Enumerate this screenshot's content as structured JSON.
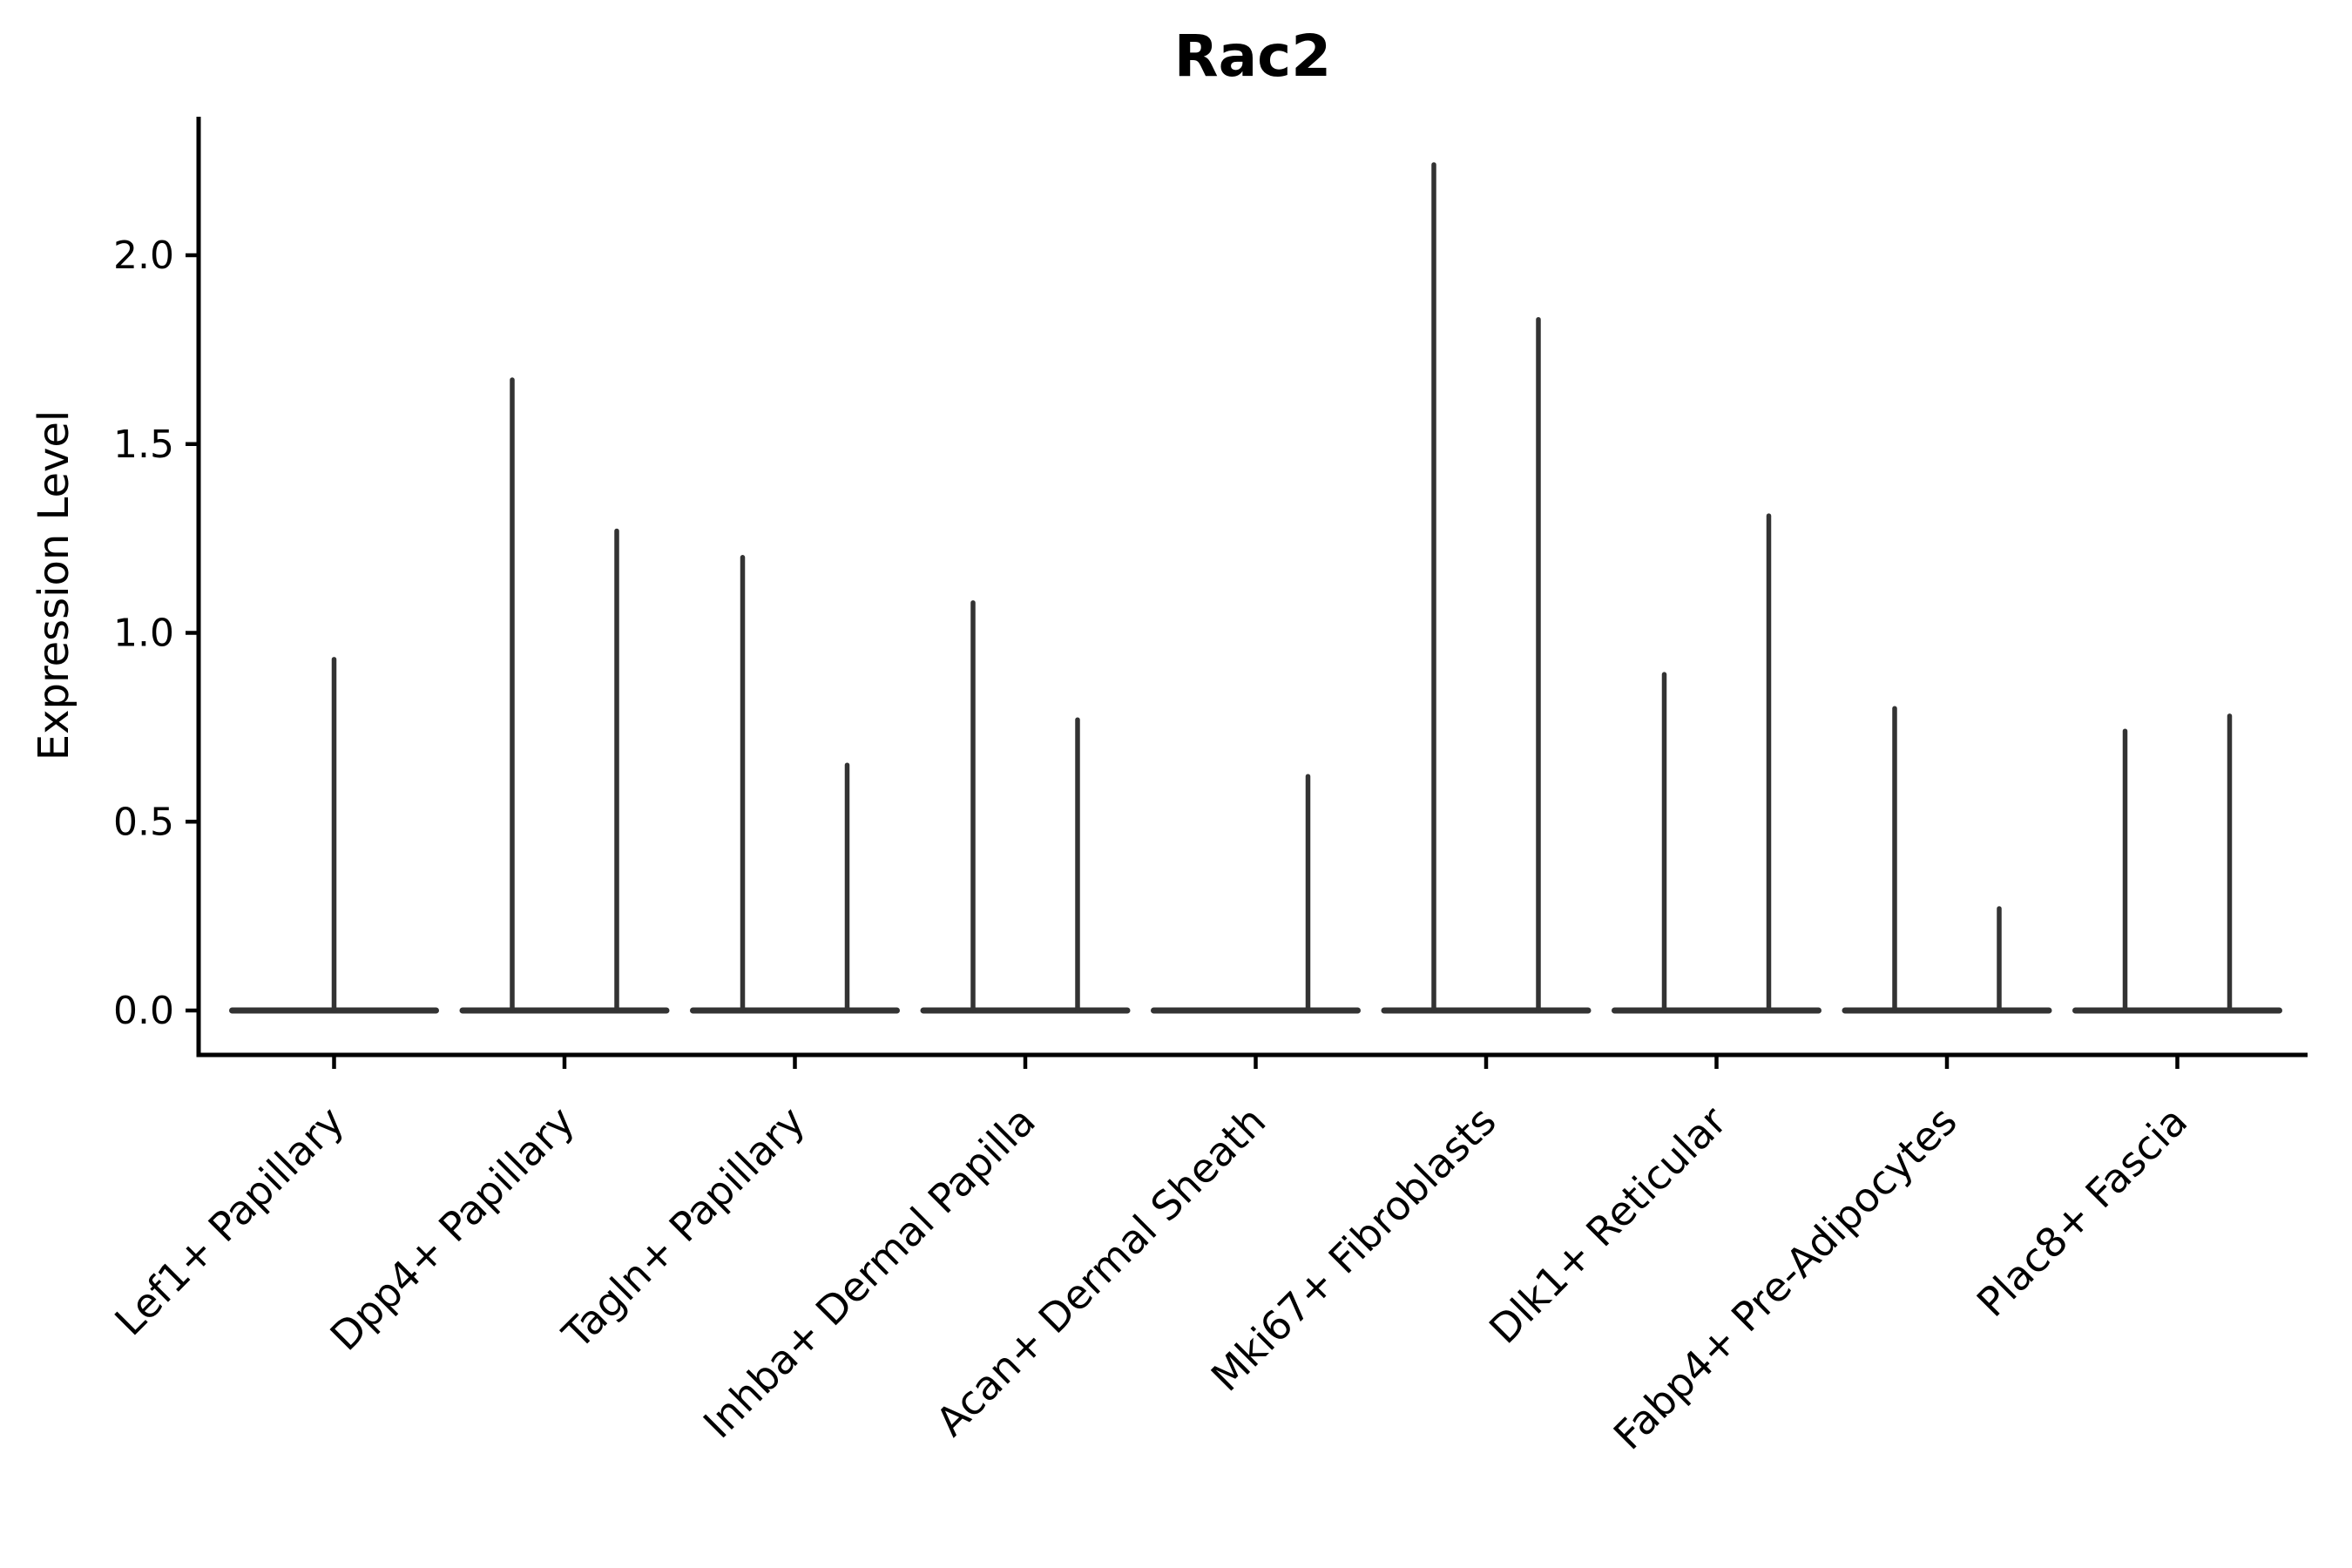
{
  "chart_data": {
    "type": "violin",
    "title": "Rac2",
    "ylabel": "Expression Level",
    "xlabel": "",
    "grid": false,
    "legend": "none",
    "ylim": [
      -0.12,
      2.37
    ],
    "yticks": [
      0.0,
      0.5,
      1.0,
      1.5,
      2.0
    ],
    "ytick_labels": [
      "0.0",
      "0.5",
      "1.0",
      "1.5",
      "2.0"
    ],
    "description": "Violin plot of Rac2 expression per cluster; each violin collapses to a flat baseline at 0 with a thin spike up to the maximum expression. Categories with two values contain two side-by-side violins; a 0 value means a flat violin with no spike.",
    "groups": [
      {
        "category": "Lef1+ Papillary",
        "violin_maxima": [
          0.93
        ]
      },
      {
        "category": "Dpp4+ Papillary",
        "violin_maxima": [
          1.67,
          1.27
        ]
      },
      {
        "category": "Tagln+ Papillary",
        "violin_maxima": [
          1.2,
          0.65
        ]
      },
      {
        "category": "Inhba+ Dermal Papilla",
        "violin_maxima": [
          1.08,
          0.77
        ]
      },
      {
        "category": "Acan+ Dermal Sheath",
        "violin_maxima": [
          0.0,
          0.62
        ]
      },
      {
        "category": "Mki67+ Fibroblasts",
        "violin_maxima": [
          2.24,
          1.83
        ]
      },
      {
        "category": "Dlk1+ Reticular",
        "violin_maxima": [
          0.89,
          1.31
        ]
      },
      {
        "category": "Fabp4+ Pre-Adipocytes",
        "violin_maxima": [
          0.8,
          0.27
        ]
      },
      {
        "category": "Plac8+ Fascia",
        "violin_maxima": [
          0.74,
          0.78
        ]
      }
    ],
    "colors": {
      "violin_stroke": "#333333",
      "axis": "#000000",
      "text": "#000000",
      "background": "#ffffff"
    }
  }
}
